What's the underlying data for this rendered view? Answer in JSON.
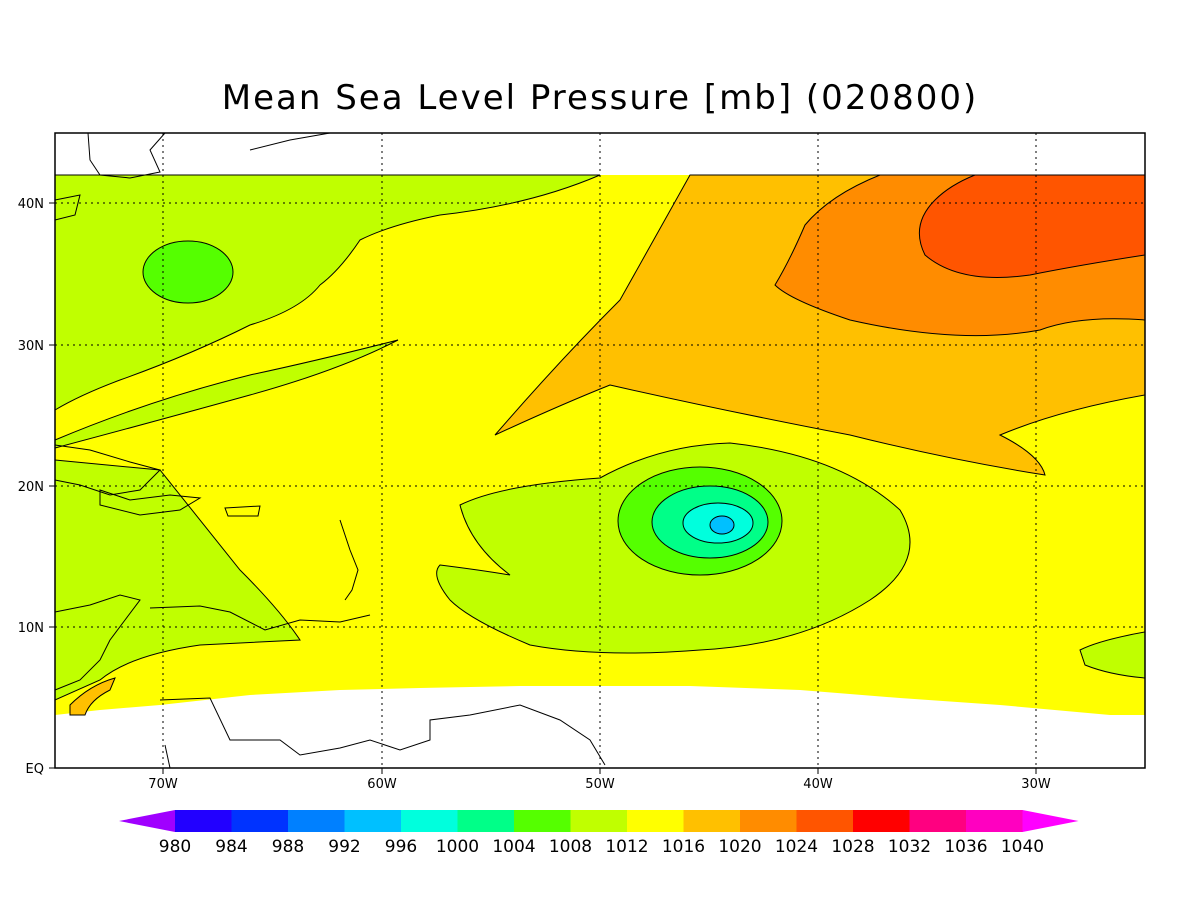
{
  "title": "Mean Sea Level Pressure [mb] (020800)",
  "map": {
    "lat_ticks": [
      "EQ",
      "10N",
      "20N",
      "30N",
      "40N"
    ],
    "lon_ticks": [
      "70W",
      "60W",
      "50W",
      "40W",
      "30W"
    ],
    "extent": {
      "lon_min": -75,
      "lon_max": -25,
      "lat_min": 0,
      "lat_max": 45
    },
    "gridlines": "dotted"
  },
  "colorbar": {
    "levels": [
      "980",
      "984",
      "988",
      "992",
      "996",
      "1000",
      "1004",
      "1008",
      "1012",
      "1016",
      "1020",
      "1024",
      "1028",
      "1032",
      "1036",
      "1040"
    ],
    "colors": [
      "#a000ff",
      "#2200ff",
      "#0033ff",
      "#0080ff",
      "#00c0ff",
      "#00ffdd",
      "#00ff88",
      "#55ff00",
      "#c0ff00",
      "#ffff00",
      "#ffc000",
      "#ff8c00",
      "#ff5500",
      "#ff0000",
      "#ff0080",
      "#ff00c0",
      "#ff00ff"
    ]
  },
  "field_colors": {
    "c1004": "#55ff00",
    "c1008": "#c0ff00",
    "c1012": "#ffff00",
    "c1016": "#ffc000",
    "c1020": "#ff8c00",
    "c1024": "#ff5500",
    "c1000": "#00ff88",
    "c996": "#00ffdd",
    "c992": "#00c0ff"
  }
}
